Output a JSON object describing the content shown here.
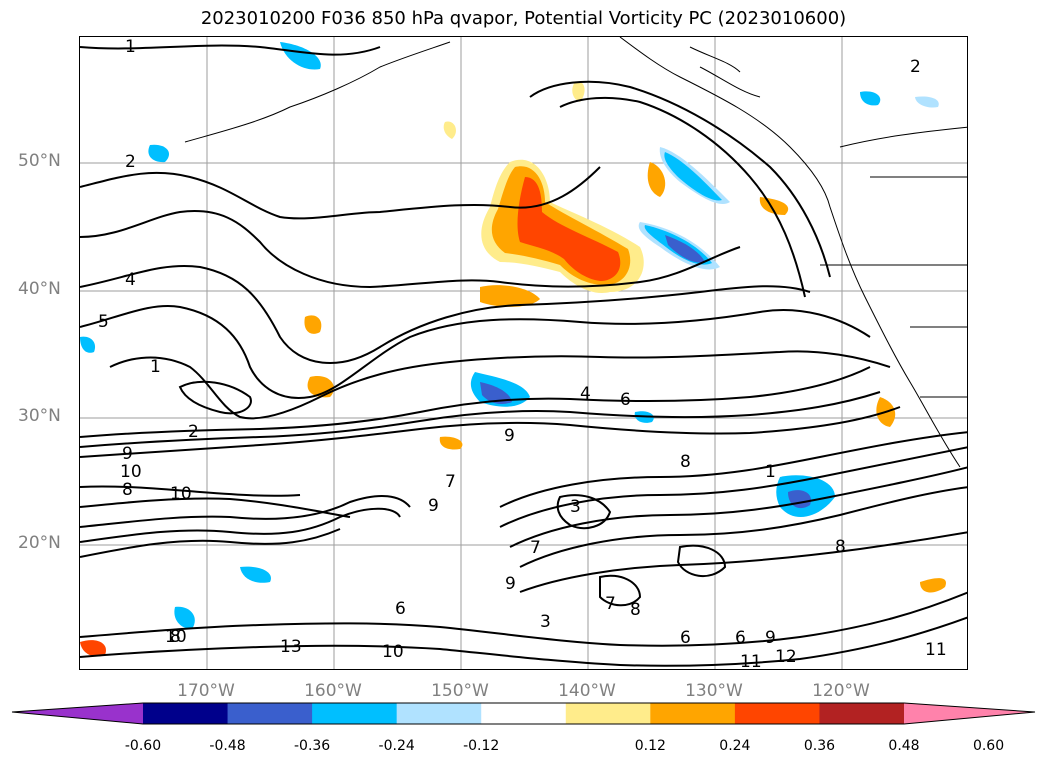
{
  "title": "2023010200 F036 850 hPa qvapor, Potential Vorticity PC (2023010600)",
  "map": {
    "lat_labels": [
      "50°N",
      "40°N",
      "30°N",
      "20°N"
    ],
    "lon_labels": [
      "170°W",
      "160°W",
      "150°W",
      "140°W",
      "130°W",
      "120°W"
    ],
    "contour_labels": [
      "1",
      "2",
      "2",
      "4",
      "5",
      "1",
      "2",
      "9",
      "10",
      "8",
      "10",
      "4",
      "6",
      "9",
      "8",
      "7",
      "9",
      "3",
      "7",
      "9",
      "6",
      "3",
      "8",
      "8",
      "7",
      "6",
      "1",
      "9",
      "6",
      "11",
      "12",
      "11",
      "13",
      "10",
      "8",
      "10"
    ]
  },
  "colorbar": {
    "ticks": [
      "-0.60",
      "-0.48",
      "-0.36",
      "-0.24",
      "-0.12",
      "0.12",
      "0.24",
      "0.36",
      "0.48",
      "0.60"
    ],
    "colors": [
      "#9932cc",
      "#00008b",
      "#3a5fcd",
      "#00bfff",
      "#b0e2ff",
      "#ffffff",
      "#ffec8b",
      "#ffa500",
      "#ff4500",
      "#b22222",
      "#ff82ab"
    ]
  }
}
